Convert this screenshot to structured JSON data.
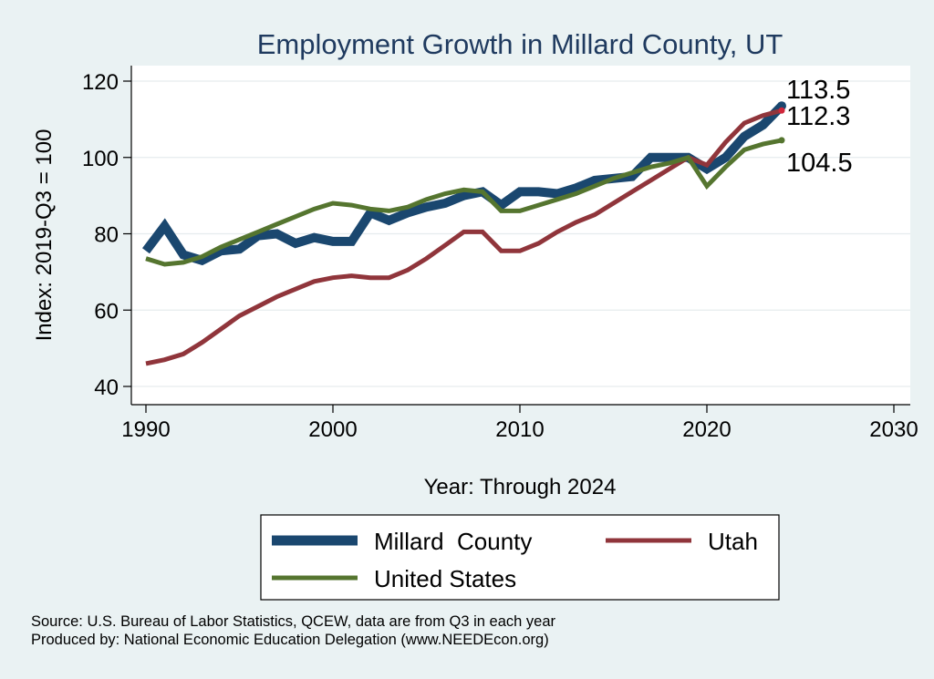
{
  "chart_data": {
    "type": "line",
    "title": "Employment Growth in Millard County, UT",
    "xlabel": "Year: Through 2024",
    "ylabel": "Index: 2019-Q3 = 100",
    "xlim": [
      1990,
      2030
    ],
    "ylim": [
      40,
      120
    ],
    "xticks": [
      1990,
      2000,
      2010,
      2020,
      2030
    ],
    "yticks": [
      40,
      60,
      80,
      100,
      120
    ],
    "grid": true,
    "x": [
      1990,
      1991,
      1992,
      1993,
      1994,
      1995,
      1996,
      1997,
      1998,
      1999,
      2000,
      2001,
      2002,
      2003,
      2004,
      2005,
      2006,
      2007,
      2008,
      2009,
      2010,
      2011,
      2012,
      2013,
      2014,
      2015,
      2016,
      2017,
      2018,
      2019,
      2020,
      2021,
      2022,
      2023,
      2024
    ],
    "series": [
      {
        "name": "Millard  County",
        "color": "#1a476f",
        "values": [
          75.5,
          82,
          74.5,
          73,
          75.5,
          76,
          79.5,
          80,
          77.5,
          79,
          78,
          78,
          85.5,
          83.5,
          85.5,
          87,
          88,
          90,
          91,
          87.5,
          91,
          91,
          90.5,
          92,
          94,
          94.5,
          95,
          100,
          100,
          100,
          97,
          100,
          105.5,
          108.5,
          113.5
        ],
        "end_label": "113.5"
      },
      {
        "name": "Utah",
        "color": "#90353b",
        "values": [
          46,
          47,
          48.5,
          51.5,
          55,
          58.5,
          61,
          63.5,
          65.5,
          67.5,
          68.5,
          69,
          68.5,
          68.5,
          70.5,
          73.5,
          77,
          80.5,
          80.5,
          75.5,
          75.5,
          77.5,
          80.5,
          83,
          85,
          88,
          91,
          94,
          97,
          100,
          98,
          104,
          109,
          111,
          112.3
        ],
        "end_label": "112.3"
      },
      {
        "name": "United States",
        "color": "#55752f",
        "values": [
          73.5,
          72,
          72.5,
          74,
          76.5,
          78.5,
          80.5,
          82.5,
          84.5,
          86.5,
          88,
          87.5,
          86.5,
          86,
          87,
          89,
          90.5,
          91.5,
          91,
          86,
          86,
          87.5,
          89,
          90.5,
          92.5,
          94.5,
          96,
          97.5,
          98.5,
          100,
          92.5,
          97.5,
          102,
          103.5,
          104.5
        ],
        "end_label": "104.5"
      }
    ],
    "legend": [
      "Millard  County",
      "Utah",
      "United States"
    ]
  },
  "source_line": "Source: U.S. Bureau of Labor Statistics, QCEW, data are from Q3 in each year",
  "produced_line": "Produced by: National Economic Education Delegation (www.NEEDEcon.org)"
}
